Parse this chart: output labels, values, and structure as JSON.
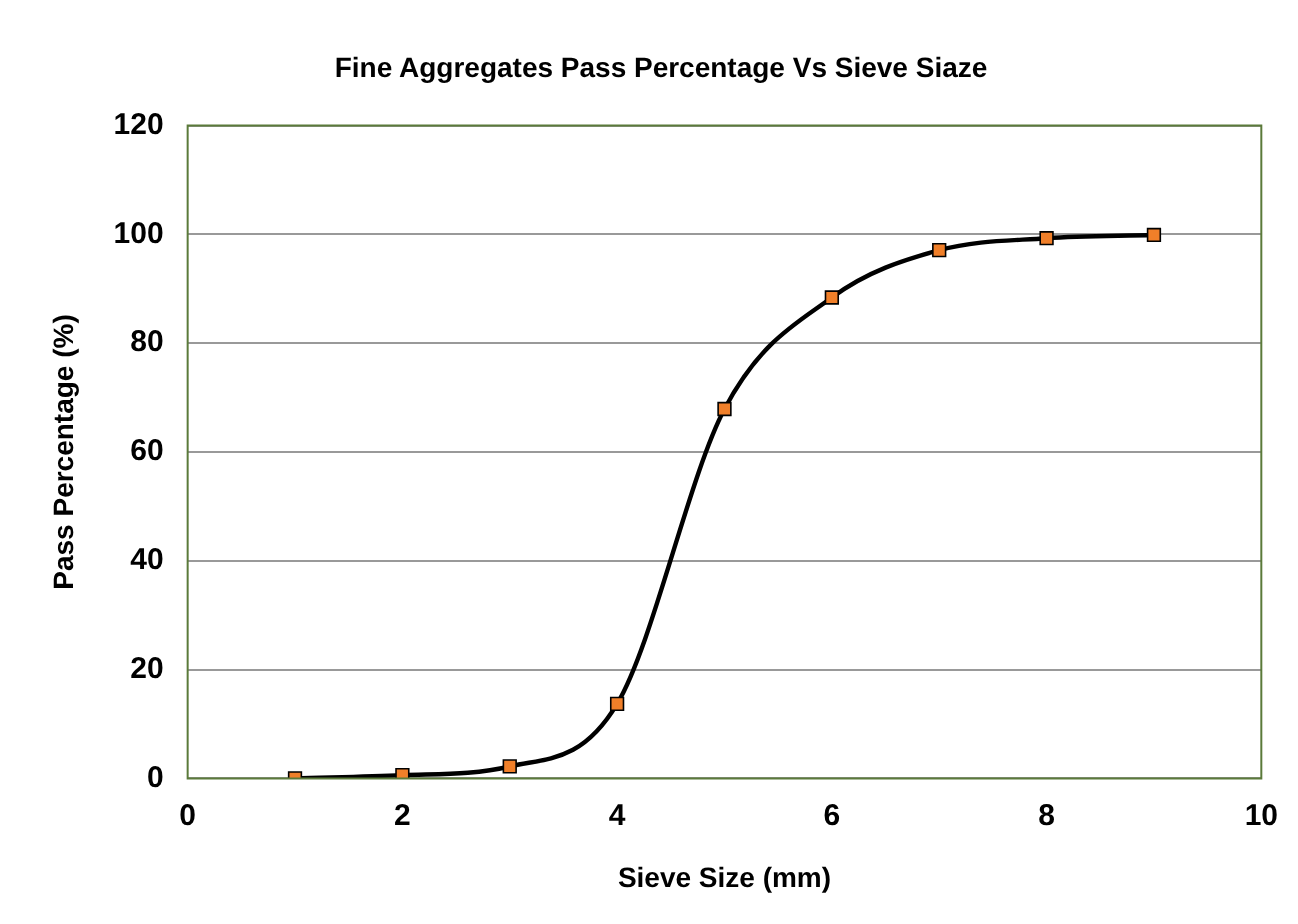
{
  "chart_data": {
    "type": "line",
    "title": "Fine Aggregates Pass Percentage Vs Sieve Siaze",
    "xlabel": "Sieve Size (mm)",
    "ylabel": "Pass Percentage (%)",
    "x": [
      1,
      2,
      3,
      4,
      5,
      6,
      7,
      8,
      9
    ],
    "series": [
      {
        "color": "#f07f29",
        "values": [
          0,
          0.6,
          2.2,
          13.7,
          67.9,
          88.4,
          97.1,
          99.3,
          99.9
        ]
      }
    ],
    "xlim": [
      0,
      10
    ],
    "xticks": [
      0,
      2,
      4,
      6,
      8,
      10
    ],
    "ylim": [
      0,
      120
    ],
    "yticks": [
      0,
      20,
      40,
      60,
      80,
      100,
      120
    ],
    "grid": "y",
    "legend": false,
    "marker": "square",
    "line_style": "solid"
  }
}
